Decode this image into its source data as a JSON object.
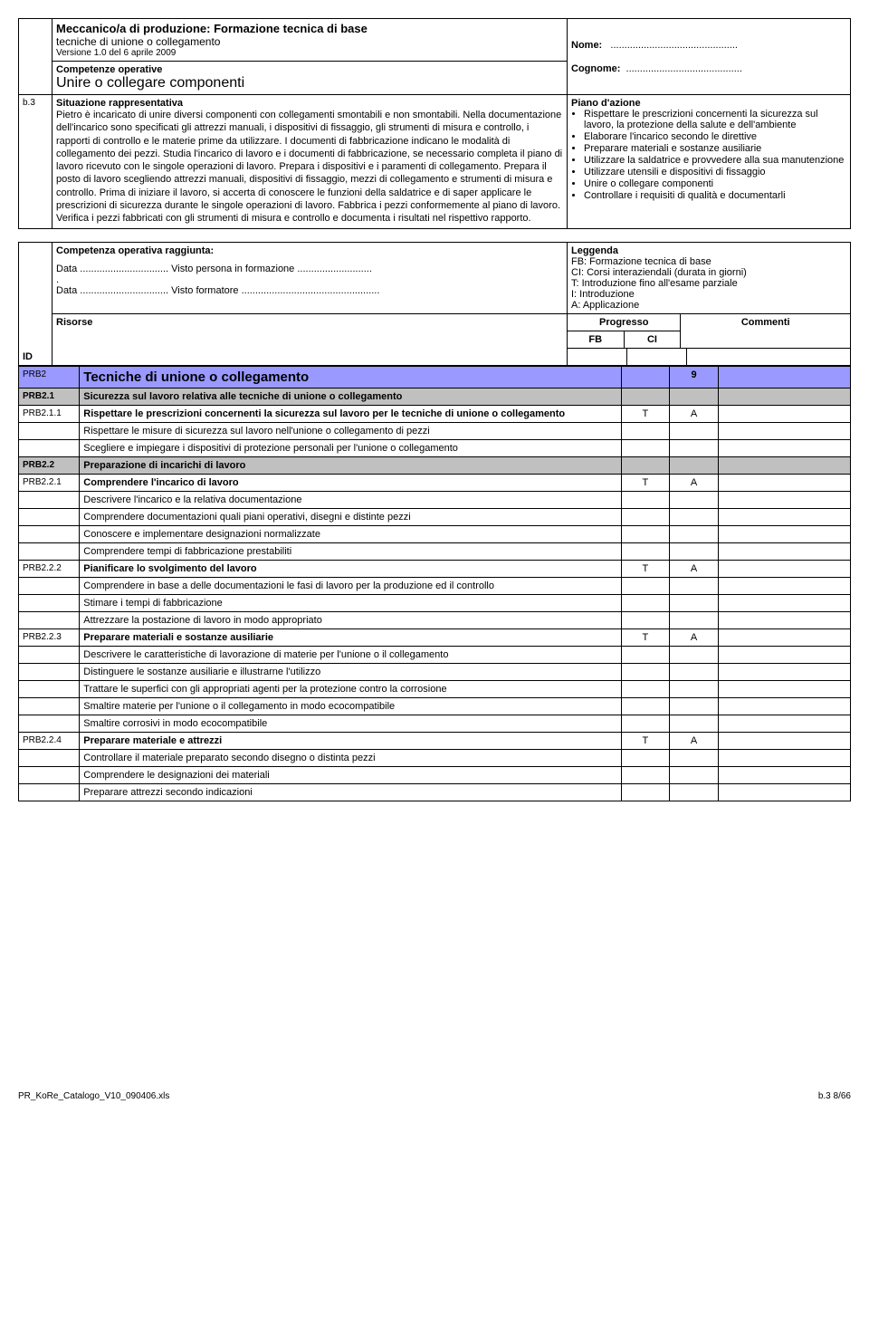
{
  "header": {
    "title": "Meccanico/a di produzione: Formazione tecnica di base",
    "subtitle": "tecniche di unione o collegamento",
    "version": "Versione 1.0 del 6 aprile 2009",
    "nome_label": "Nome:",
    "nome_dots": "..............................................",
    "cognome_label": "Cognome:",
    "cognome_dots": ".........................................."
  },
  "b3": {
    "id": "b.3",
    "comp_label": "Competenze operative",
    "section": "Unire o collegare componenti",
    "sit_title": "Situazione rappresentativa",
    "sit_text": "Pietro è incaricato di unire diversi componenti con collegamenti smontabili e non smontabili. Nella documentazione dell'incarico sono specificati gli attrezzi manuali, i dispositivi di fissaggio, gli strumenti di misura e controllo, i rapporti di controllo e le materie prime da utilizzare. I documenti di fabbricazione indicano le modalità di collegamento dei pezzi. Studia l'incarico di lavoro e i documenti di fabbricazione, se necessario completa il piano di lavoro ricevuto con le singole operazioni di lavoro. Prepara i dispositivi e i paramenti di collegamento. Prepara il posto di lavoro scegliendo attrezzi manuali, dispositivi di fissaggio, mezzi di collegamento e strumenti di misura e controllo. Prima di iniziare il lavoro, si accerta di conoscere le funzioni della saldatrice e di saper applicare le prescrizioni di sicurezza durante le singole operazioni di lavoro. Fabbrica i pezzi conformemente al piano di lavoro. Verifica i pezzi fabbricati con gli strumenti di misura e controllo e documenta i risultati nel rispettivo rapporto.",
    "plan_title": "Piano d'azione",
    "plan_items": [
      "Rispettare le prescrizioni concernenti la sicurezza sul lavoro, la protezione della salute e dell'ambiente",
      "Elaborare l'incarico secondo le direttive",
      "Preparare materiali e sostanze ausiliarie",
      "Utilizzare la saldatrice e provvedere alla sua manutenzione",
      "Utilizzare utensili e dispositivi di fissaggio",
      "Unire o collegare componenti",
      "Controllare i requisiti di qualità e documentarli"
    ]
  },
  "mid": {
    "comp_title": "Competenza operativa raggiunta:",
    "data1": "Data ................................   Visto persona in formazione ...........................",
    "data2": "Data ................................   Visto formatore ..................................................",
    "legend_title": "Leggenda",
    "legend_items": [
      "FB: Formazione tecnica di base",
      "CI:   Corsi interaziendali (durata in giorni)",
      "T:    Introduzione fino all'esame parziale",
      "I:     Introduzione",
      "A:   Applicazione"
    ]
  },
  "table": {
    "id_label": "ID",
    "risorse": "Risorse",
    "progresso": "Progresso",
    "commenti": "Commenti",
    "fb": "FB",
    "ci": "CI",
    "rows": [
      {
        "id": "PRB2",
        "text": "Tecniche di unione o collegamento",
        "fb": "",
        "ci": "9",
        "class": "row-purple",
        "sectstyle": true
      },
      {
        "id": "PRB2.1",
        "text": "Sicurezza sul lavoro relativa alle tecniche di unione o collegamento",
        "class": "row-gray bold"
      },
      {
        "id": "PRB2.1.1",
        "text": "Rispettare le prescrizioni concernenti la sicurezza sul lavoro per le tecniche di unione o collegamento",
        "fb": "T",
        "ci": "A",
        "bold": true
      },
      {
        "id": "",
        "text": "Rispettare le misure di sicurezza sul lavoro nell'unione o collegamento di pezzi"
      },
      {
        "id": "",
        "text": "Scegliere e impiegare i dispositivi di protezione personali per l'unione o collegamento"
      },
      {
        "id": "PRB2.2",
        "text": "Preparazione di incarichi di lavoro",
        "class": "row-gray bold"
      },
      {
        "id": "PRB2.2.1",
        "text": "Comprendere l'incarico di lavoro",
        "fb": "T",
        "ci": "A",
        "bold": true
      },
      {
        "id": "",
        "text": "Descrivere l'incarico e la relativa documentazione"
      },
      {
        "id": "",
        "text": "Comprendere documentazioni quali piani operativi, disegni e distinte pezzi"
      },
      {
        "id": "",
        "text": "Conoscere e implementare designazioni normalizzate"
      },
      {
        "id": "",
        "text": "Comprendere tempi di fabbricazione prestabiliti"
      },
      {
        "id": "PRB2.2.2",
        "text": "Pianificare lo svolgimento del lavoro",
        "fb": "T",
        "ci": "A",
        "bold": true
      },
      {
        "id": "",
        "text": "Comprendere in base a delle documentazioni le fasi di lavoro per la produzione ed il controllo"
      },
      {
        "id": "",
        "text": "Stimare i tempi di fabbricazione"
      },
      {
        "id": "",
        "text": "Attrezzare la postazione di lavoro in modo appropriato"
      },
      {
        "id": "PRB2.2.3",
        "text": "Preparare materiali e sostanze ausiliarie",
        "fb": "T",
        "ci": "A",
        "bold": true
      },
      {
        "id": "",
        "text": "Descrivere le caratteristiche di lavorazione di materie per l'unione o il collegamento"
      },
      {
        "id": "",
        "text": "Distinguere le sostanze ausiliarie e illustrarne l'utilizzo"
      },
      {
        "id": "",
        "text": "Trattare le superfici con gli appropriati agenti per la protezione contro la corrosione"
      },
      {
        "id": "",
        "text": "Smaltire materie per l'unione o il collegamento in modo ecocompatibile"
      },
      {
        "id": "",
        "text": "Smaltire corrosivi in modo ecocompatibile"
      },
      {
        "id": "PRB2.2.4",
        "text": "Preparare materiale e attrezzi",
        "fb": "T",
        "ci": "A",
        "bold": true
      },
      {
        "id": "",
        "text": "Controllare il materiale preparato secondo disegno o distinta pezzi"
      },
      {
        "id": "",
        "text": "Comprendere le designazioni dei materiali"
      },
      {
        "id": "",
        "text": "Preparare attrezzi secondo indicazioni"
      }
    ]
  },
  "footer": {
    "left": "PR_KoRe_Catalogo_V10_090406.xls",
    "right": "b.3  8/66"
  }
}
